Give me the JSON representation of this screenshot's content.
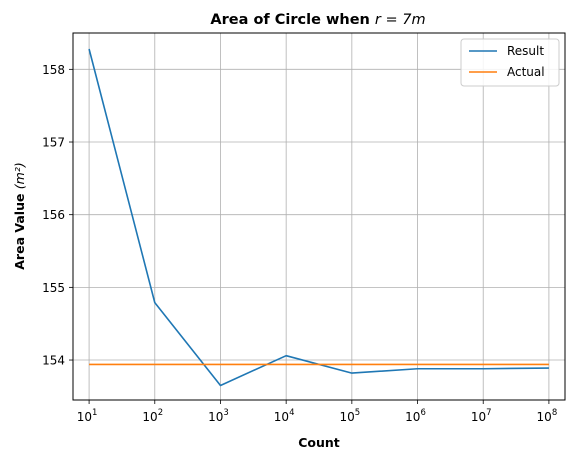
{
  "chart_data": {
    "type": "line",
    "title": "Area of Circle when ",
    "title_math": "r = 7m",
    "xlabel": "Count",
    "ylabel": "Area Value ",
    "ylabel_unit": "(m²)",
    "x_scale": "log",
    "x_tick_base": "10",
    "x_tick_exponents": [
      "1",
      "2",
      "3",
      "4",
      "5",
      "6",
      "7",
      "8"
    ],
    "x": [
      10,
      100,
      1000,
      10000,
      100000,
      1000000,
      10000000,
      100000000
    ],
    "yticks": [
      "154",
      "155",
      "156",
      "157",
      "158"
    ],
    "ylim": [
      153.45,
      158.5
    ],
    "grid": true,
    "legend_position": "top-right",
    "series": [
      {
        "name": "Result",
        "color": "#1f77b4",
        "values": [
          158.28,
          154.79,
          153.65,
          154.06,
          153.82,
          153.88,
          153.88,
          153.89
        ]
      },
      {
        "name": "Actual",
        "color": "#ff7f0e",
        "values": [
          153.94,
          153.94,
          153.94,
          153.94,
          153.94,
          153.94,
          153.94,
          153.94
        ]
      }
    ]
  }
}
